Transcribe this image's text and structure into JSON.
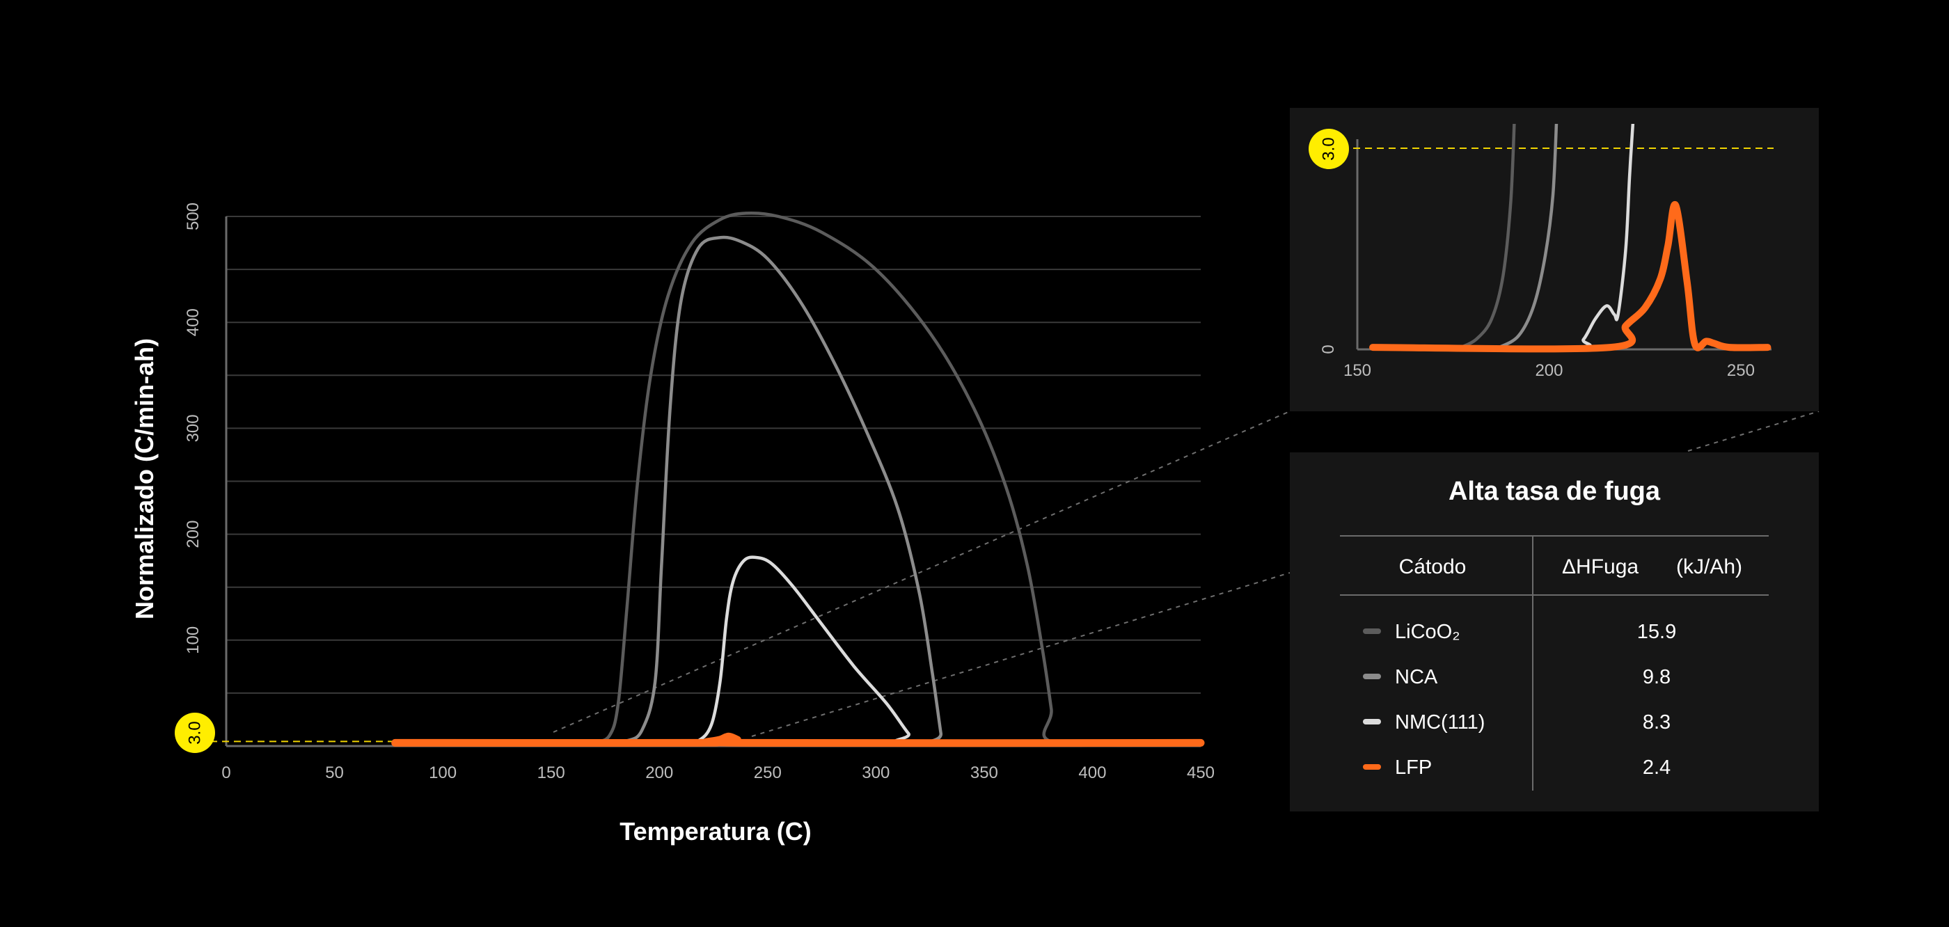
{
  "colors": {
    "background": "#000000",
    "panel": "#161616",
    "grid": "#3a3a3a",
    "axis": "#6b6b6b",
    "tick_text": "#bdbdbd",
    "threshold": "#f0d400",
    "badge": "#ffee00",
    "guide": "#6f6f6f"
  },
  "chart_data": [
    {
      "type": "line",
      "xlabel": "Temperatura (C)",
      "ylabel": "Normalizado (C/min-ah)",
      "xlim": [
        0,
        450
      ],
      "ylim": [
        0,
        500
      ],
      "x_ticks": [
        "0",
        "50",
        "100",
        "150",
        "200",
        "250",
        "300",
        "350",
        "400",
        "450"
      ],
      "y_ticks": [
        "100",
        "200",
        "300",
        "400",
        "500"
      ],
      "grid": true,
      "threshold": {
        "value": 3.0,
        "label": "3.0"
      },
      "series": [
        {
          "name": "LiCoO₂",
          "color": "#5c5c5c",
          "width": 4.5,
          "points": [
            [
              78,
              3
            ],
            [
              160,
              3
            ],
            [
              170,
              4
            ],
            [
              177,
              10
            ],
            [
              181,
              40
            ],
            [
              185,
              130
            ],
            [
              190,
              250
            ],
            [
              196,
              350
            ],
            [
              204,
              425
            ],
            [
              215,
              475
            ],
            [
              228,
              497
            ],
            [
              240,
              503
            ],
            [
              255,
              500
            ],
            [
              275,
              485
            ],
            [
              300,
              450
            ],
            [
              325,
              390
            ],
            [
              345,
              320
            ],
            [
              360,
              245
            ],
            [
              370,
              170
            ],
            [
              377,
              90
            ],
            [
              381,
              35
            ],
            [
              383,
              3
            ],
            [
              450,
              3
            ]
          ]
        },
        {
          "name": "NCA",
          "color": "#8c8c8c",
          "width": 4.5,
          "points": [
            [
              78,
              3
            ],
            [
              175,
              3
            ],
            [
              185,
              5
            ],
            [
              192,
              15
            ],
            [
              198,
              60
            ],
            [
              201,
              170
            ],
            [
              205,
              320
            ],
            [
              210,
              420
            ],
            [
              218,
              470
            ],
            [
              228,
              480
            ],
            [
              238,
              476
            ],
            [
              250,
              460
            ],
            [
              265,
              420
            ],
            [
              280,
              365
            ],
            [
              295,
              300
            ],
            [
              310,
              225
            ],
            [
              320,
              145
            ],
            [
              326,
              70
            ],
            [
              330,
              12
            ],
            [
              331,
              3
            ],
            [
              450,
              3
            ]
          ]
        },
        {
          "name": "NMC(111)",
          "color": "#dcdcdc",
          "width": 4.5,
          "points": [
            [
              78,
              3
            ],
            [
              210,
              3
            ],
            [
              218,
              5
            ],
            [
              224,
              20
            ],
            [
              228,
              60
            ],
            [
              231,
              120
            ],
            [
              234,
              155
            ],
            [
              239,
              175
            ],
            [
              245,
              178
            ],
            [
              252,
              172
            ],
            [
              262,
              150
            ],
            [
              275,
              115
            ],
            [
              290,
              75
            ],
            [
              305,
              40
            ],
            [
              315,
              12
            ],
            [
              320,
              3
            ],
            [
              450,
              3
            ]
          ]
        },
        {
          "name": "LFP",
          "color": "#ff6a1a",
          "width": 11,
          "points": [
            [
              78,
              3
            ],
            [
              215,
              3
            ],
            [
              222,
              4
            ],
            [
              228,
              6
            ],
            [
              232,
              9
            ],
            [
              236,
              6
            ],
            [
              240,
              3
            ],
            [
              450,
              3
            ]
          ]
        }
      ]
    },
    {
      "type": "line",
      "xlim": [
        150,
        258
      ],
      "ylim": [
        0,
        3.3
      ],
      "x_ticks": [
        "150",
        "200",
        "250"
      ],
      "y_ticks": [
        "0"
      ],
      "threshold": {
        "value": 3.0,
        "label": "3.0"
      },
      "series": [
        {
          "name": "LiCoO₂",
          "color": "#5c5c5c",
          "width": 4.5,
          "points": [
            [
              177,
              0.03
            ],
            [
              181,
              0.15
            ],
            [
              185,
              0.45
            ],
            [
              188,
              1.1
            ],
            [
              190,
              2.2
            ],
            [
              191,
              3.5
            ]
          ]
        },
        {
          "name": "NCA",
          "color": "#8c8c8c",
          "width": 4.5,
          "points": [
            [
              187,
              0.03
            ],
            [
              192,
              0.2
            ],
            [
              196,
              0.65
            ],
            [
              199,
              1.4
            ],
            [
              201,
              2.3
            ],
            [
              202,
              3.5
            ]
          ]
        },
        {
          "name": "NMC(111)",
          "color": "#dcdcdc",
          "width": 4.5,
          "points": [
            [
              154,
              0.03
            ],
            [
              206,
              0.03
            ],
            [
              209,
              0.15
            ],
            [
              212,
              0.45
            ],
            [
              215,
              0.65
            ],
            [
              217,
              0.52
            ],
            [
              218,
              0.52
            ],
            [
              220,
              1.5
            ],
            [
              221,
              2.6
            ],
            [
              222,
              3.5
            ]
          ]
        },
        {
          "name": "LFP",
          "color": "#ff6a1a",
          "width": 10,
          "points": [
            [
              154,
              0.03
            ],
            [
              216,
              0.03
            ],
            [
              220,
              0.35
            ],
            [
              225,
              0.62
            ],
            [
              229,
              1.05
            ],
            [
              231,
              1.55
            ],
            [
              233,
              2.15
            ],
            [
              236,
              1.0
            ],
            [
              238,
              0.08
            ],
            [
              241,
              0.12
            ],
            [
              243,
              0.09
            ],
            [
              247,
              0.03
            ],
            [
              257,
              0.03
            ]
          ]
        }
      ]
    }
  ],
  "table": {
    "title": "Alta tasa de fuga",
    "col1_header": "Cátodo",
    "col2_header": "ΔHFuga",
    "col2_unit": "(kJ/Ah)",
    "rows": [
      {
        "label": "LiCoO₂",
        "value": "15.9",
        "color": "#5c5c5c"
      },
      {
        "label": "NCA",
        "value": "9.8",
        "color": "#8c8c8c"
      },
      {
        "label": "NMC(111)",
        "value": "8.3",
        "color": "#dcdcdc"
      },
      {
        "label": "LFP",
        "value": "2.4",
        "color": "#ff6a1a"
      }
    ]
  }
}
